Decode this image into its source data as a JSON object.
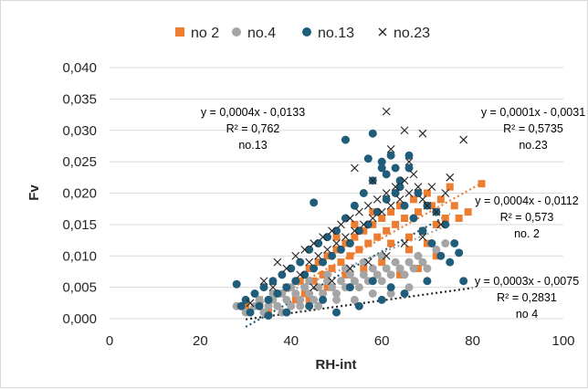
{
  "chart_data": {
    "type": "scatter",
    "title": "",
    "xlabel": "RH-int",
    "ylabel": "Fv",
    "xlim": [
      0,
      100
    ],
    "ylim": [
      0,
      0.04
    ],
    "x_ticks": [
      "0",
      "20",
      "40",
      "60",
      "80",
      "100"
    ],
    "y_ticks": [
      "0,000",
      "0,005",
      "0,010",
      "0,015",
      "0,020",
      "0,025",
      "0,030",
      "0,035",
      "0,040"
    ],
    "grid": "horizontal",
    "legend": "top",
    "series": [
      {
        "name": "no 2",
        "marker": "square",
        "color": "#ed7d31",
        "points": [
          [
            30,
            0.002
          ],
          [
            33,
            0.003
          ],
          [
            35,
            0.001
          ],
          [
            37,
            0.004
          ],
          [
            39,
            0.005
          ],
          [
            41,
            0.003
          ],
          [
            42,
            0.006
          ],
          [
            43,
            0.004
          ],
          [
            44,
            0.008
          ],
          [
            45,
            0.006
          ],
          [
            46,
            0.009
          ],
          [
            47,
            0.007
          ],
          [
            48,
            0.01
          ],
          [
            49,
            0.008
          ],
          [
            50,
            0.011
          ],
          [
            51,
            0.009
          ],
          [
            52,
            0.012
          ],
          [
            53,
            0.01
          ],
          [
            54,
            0.013
          ],
          [
            55,
            0.011
          ],
          [
            56,
            0.014
          ],
          [
            57,
            0.012
          ],
          [
            58,
            0.015
          ],
          [
            59,
            0.013
          ],
          [
            60,
            0.016
          ],
          [
            61,
            0.014
          ],
          [
            62,
            0.017
          ],
          [
            63,
            0.015
          ],
          [
            64,
            0.018
          ],
          [
            65,
            0.016
          ],
          [
            66,
            0.013
          ],
          [
            67,
            0.019
          ],
          [
            68,
            0.017
          ],
          [
            69,
            0.014
          ],
          [
            70,
            0.02
          ],
          [
            71,
            0.018
          ],
          [
            72,
            0.015
          ],
          [
            73,
            0.019
          ],
          [
            74,
            0.016
          ],
          [
            75,
            0.021
          ],
          [
            76,
            0.018
          ],
          [
            77,
            0.016
          ],
          [
            79,
            0.017
          ],
          [
            82,
            0.0215
          ],
          [
            44,
            0.003
          ],
          [
            48,
            0.005
          ],
          [
            52,
            0.007
          ],
          [
            56,
            0.008
          ],
          [
            60,
            0.009
          ],
          [
            64,
            0.007
          ],
          [
            68,
            0.008
          ],
          [
            72,
            0.01
          ],
          [
            50,
            0.013
          ],
          [
            54,
            0.015
          ],
          [
            58,
            0.017
          ],
          [
            62,
            0.012
          ],
          [
            66,
            0.011
          ],
          [
            70,
            0.012
          ]
        ]
      },
      {
        "name": "no.4",
        "marker": "circle",
        "color": "#a5a5a5",
        "points": [
          [
            28,
            0.002
          ],
          [
            30,
            0.001
          ],
          [
            32,
            0.002
          ],
          [
            33,
            0.003
          ],
          [
            34,
            0.001
          ],
          [
            35,
            0.002
          ],
          [
            36,
            0.003
          ],
          [
            37,
            0.002
          ],
          [
            38,
            0.004
          ],
          [
            39,
            0.003
          ],
          [
            40,
            0.002
          ],
          [
            41,
            0.004
          ],
          [
            42,
            0.003
          ],
          [
            43,
            0.005
          ],
          [
            44,
            0.004
          ],
          [
            45,
            0.003
          ],
          [
            46,
            0.005
          ],
          [
            47,
            0.004
          ],
          [
            48,
            0.006
          ],
          [
            49,
            0.005
          ],
          [
            50,
            0.004
          ],
          [
            51,
            0.006
          ],
          [
            52,
            0.005
          ],
          [
            53,
            0.007
          ],
          [
            54,
            0.006
          ],
          [
            55,
            0.005
          ],
          [
            56,
            0.007
          ],
          [
            57,
            0.006
          ],
          [
            58,
            0.008
          ],
          [
            59,
            0.007
          ],
          [
            60,
            0.006
          ],
          [
            61,
            0.008
          ],
          [
            62,
            0.007
          ],
          [
            63,
            0.009
          ],
          [
            64,
            0.008
          ],
          [
            65,
            0.007
          ],
          [
            66,
            0.009
          ],
          [
            67,
            0.008
          ],
          [
            68,
            0.01
          ],
          [
            69,
            0.009
          ],
          [
            70,
            0.008
          ],
          [
            72,
            0.011
          ],
          [
            74,
            0.012
          ],
          [
            38,
            0.001
          ],
          [
            42,
            0.002
          ],
          [
            46,
            0.002
          ],
          [
            50,
            0.003
          ],
          [
            54,
            0.003
          ],
          [
            58,
            0.004
          ],
          [
            62,
            0.004
          ],
          [
            66,
            0.005
          ],
          [
            36,
            0.004
          ],
          [
            40,
            0.005
          ],
          [
            44,
            0.006
          ],
          [
            48,
            0.007
          ],
          [
            52,
            0.008
          ],
          [
            56,
            0.009
          ],
          [
            60,
            0.01
          ]
        ]
      },
      {
        "name": "no.13",
        "marker": "circle",
        "color": "#1f5d7a",
        "points": [
          [
            28,
            0.0055
          ],
          [
            29,
            0.002
          ],
          [
            30,
            0.003
          ],
          [
            31,
            0.001
          ],
          [
            32,
            0.004
          ],
          [
            33,
            0.002
          ],
          [
            34,
            0.005
          ],
          [
            35,
            0.003
          ],
          [
            36,
            0.006
          ],
          [
            37,
            0.004
          ],
          [
            38,
            0.007
          ],
          [
            39,
            0.005
          ],
          [
            40,
            0.008
          ],
          [
            41,
            0.006
          ],
          [
            42,
            0.009
          ],
          [
            43,
            0.007
          ],
          [
            44,
            0.011
          ],
          [
            45,
            0.008
          ],
          [
            46,
            0.012
          ],
          [
            47,
            0.009
          ],
          [
            48,
            0.013
          ],
          [
            49,
            0.01
          ],
          [
            50,
            0.014
          ],
          [
            51,
            0.011
          ],
          [
            52,
            0.016
          ],
          [
            53,
            0.012
          ],
          [
            54,
            0.018
          ],
          [
            55,
            0.014
          ],
          [
            56,
            0.02
          ],
          [
            57,
            0.015
          ],
          [
            58,
            0.022
          ],
          [
            59,
            0.017
          ],
          [
            60,
            0.024
          ],
          [
            61,
            0.019
          ],
          [
            62,
            0.026
          ],
          [
            63,
            0.02
          ],
          [
            64,
            0.022
          ],
          [
            65,
            0.018
          ],
          [
            66,
            0.024
          ],
          [
            67,
            0.016
          ],
          [
            68,
            0.02
          ],
          [
            69,
            0.014
          ],
          [
            70,
            0.018
          ],
          [
            71,
            0.012
          ],
          [
            72,
            0.017
          ],
          [
            73,
            0.01
          ],
          [
            74,
            0.015
          ],
          [
            75,
            0.009
          ],
          [
            76,
            0.012
          ],
          [
            77,
            0.0105
          ],
          [
            78,
            0.006
          ],
          [
            45,
            0.0185
          ],
          [
            52,
            0.0285
          ],
          [
            57,
            0.0255
          ],
          [
            58,
            0.0295
          ],
          [
            61,
            0.023
          ],
          [
            64,
            0.021
          ],
          [
            60,
            0.025
          ],
          [
            63,
            0.024
          ],
          [
            66,
            0.026
          ],
          [
            50,
            0.001
          ],
          [
            55,
            0.002
          ],
          [
            60,
            0.003
          ],
          [
            65,
            0.004
          ],
          [
            70,
            0.006
          ],
          [
            47,
            0.003
          ],
          [
            53,
            0.005
          ],
          [
            58,
            0.006
          ],
          [
            62,
            0.005
          ],
          [
            44,
            0.002
          ],
          [
            39,
            0.001
          ],
          [
            35,
            0.0005
          ]
        ]
      },
      {
        "name": "no.23",
        "marker": "x",
        "color": "#262626",
        "points": [
          [
            31,
            0.0025
          ],
          [
            34,
            0.006
          ],
          [
            36,
            0.005
          ],
          [
            37,
            0.009
          ],
          [
            39,
            0.008
          ],
          [
            41,
            0.01
          ],
          [
            42,
            0.007
          ],
          [
            43,
            0.011
          ],
          [
            44,
            0.009
          ],
          [
            45,
            0.012
          ],
          [
            46,
            0.01
          ],
          [
            47,
            0.013
          ],
          [
            48,
            0.011
          ],
          [
            49,
            0.014
          ],
          [
            50,
            0.012
          ],
          [
            51,
            0.015
          ],
          [
            52,
            0.013
          ],
          [
            53,
            0.016
          ],
          [
            54,
            0.014
          ],
          [
            55,
            0.017
          ],
          [
            56,
            0.015
          ],
          [
            57,
            0.018
          ],
          [
            58,
            0.016
          ],
          [
            59,
            0.019
          ],
          [
            60,
            0.017
          ],
          [
            61,
            0.02
          ],
          [
            62,
            0.018
          ],
          [
            63,
            0.021
          ],
          [
            64,
            0.019
          ],
          [
            65,
            0.022
          ],
          [
            66,
            0.02
          ],
          [
            67,
            0.023
          ],
          [
            68,
            0.021
          ],
          [
            69,
            0.019
          ],
          [
            70,
            0.018
          ],
          [
            71,
            0.021
          ],
          [
            72,
            0.017
          ],
          [
            73,
            0.015
          ],
          [
            74,
            0.02
          ],
          [
            75,
            0.0225
          ],
          [
            61,
            0.033
          ],
          [
            65,
            0.03
          ],
          [
            69,
            0.0295
          ],
          [
            78,
            0.0285
          ],
          [
            54,
            0.024
          ],
          [
            58,
            0.022
          ],
          [
            62,
            0.027
          ],
          [
            66,
            0.025
          ],
          [
            45,
            0.005
          ],
          [
            49,
            0.006
          ],
          [
            53,
            0.008
          ],
          [
            57,
            0.009
          ],
          [
            61,
            0.01
          ],
          [
            65,
            0.012
          ],
          [
            69,
            0.013
          ]
        ]
      }
    ],
    "trendlines": [
      {
        "series": "no.13",
        "equation": "y = 0,0004x - 0,0133",
        "r2": "R² = 0,762",
        "label": "no.13",
        "slope": 0.0004,
        "intercept": -0.0133,
        "x_range": [
          30,
          75
        ],
        "color": "#1f5d7a"
      },
      {
        "series": "no.23",
        "equation": "y = 0,0001x - 0,0031",
        "r2": "R² = 0,5735",
        "label": "no.23",
        "slope": 0.0001,
        "intercept": -0.0031,
        "x_range": [
          30,
          80
        ],
        "color": "#262626"
      },
      {
        "series": "no 2",
        "equation": "y = 0,0004x - 0,0112",
        "r2": "R² = 0,573",
        "label": "no. 2",
        "slope": 0.0004,
        "intercept": -0.0112,
        "x_range": [
          30,
          82
        ],
        "color": "#ed7d31"
      },
      {
        "series": "no.4",
        "equation": "y = 0,0003x - 0,0075",
        "r2": "R² = 0,2831",
        "label": "no 4",
        "slope": 0.0003,
        "intercept": -0.0075,
        "x_range": [
          30,
          75
        ],
        "color": "#a5a5a5"
      }
    ]
  }
}
